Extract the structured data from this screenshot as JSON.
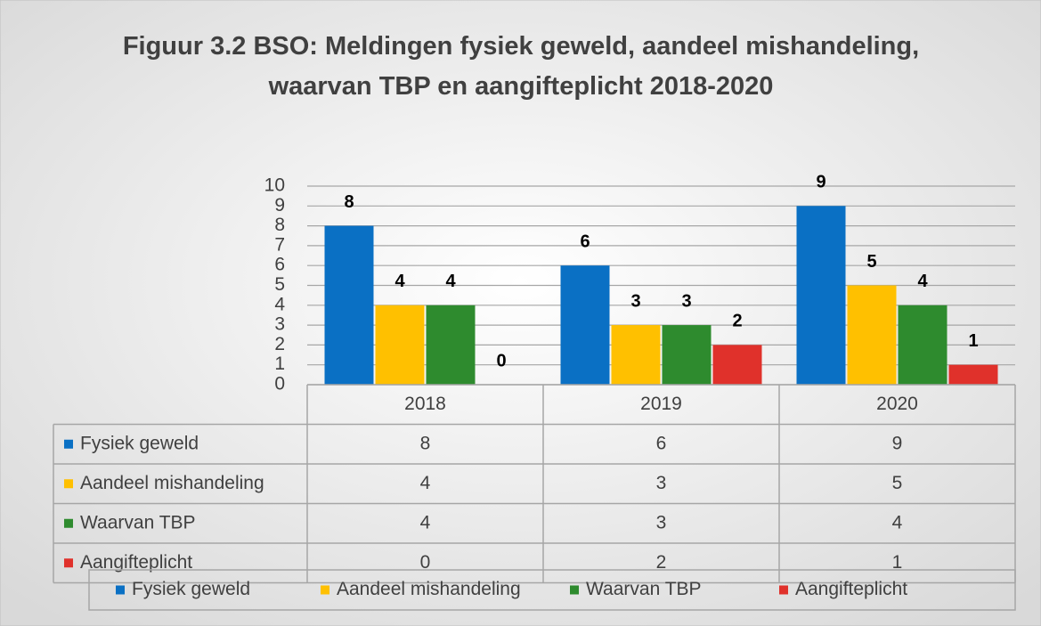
{
  "chart_data": {
    "type": "bar",
    "title": "Figuur 3.2 BSO: Meldingen fysiek geweld, aandeel mishandeling,  waarvan TBP en aangifteplicht 2018-2020",
    "categories": [
      "2018",
      "2019",
      "2020"
    ],
    "series": [
      {
        "name": "Fysiek geweld",
        "color": "#0a70c4",
        "values": [
          8,
          6,
          9
        ]
      },
      {
        "name": "Aandeel mishandeling",
        "color": "#ffc000",
        "values": [
          4,
          3,
          5
        ]
      },
      {
        "name": "Waarvan TBP",
        "color": "#2e8b2e",
        "values": [
          4,
          3,
          4
        ]
      },
      {
        "name": "Aangifteplicht",
        "color": "#e0312b",
        "values": [
          0,
          2,
          1
        ]
      }
    ],
    "ylim": [
      0,
      10
    ],
    "yticks": [
      0,
      1,
      2,
      3,
      4,
      5,
      6,
      7,
      8,
      9,
      10
    ],
    "grid": true,
    "data_table": true,
    "legend": "bottom"
  }
}
